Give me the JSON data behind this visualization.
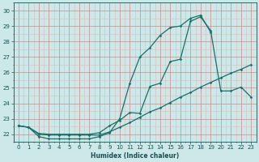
{
  "xlabel": "Humidex (Indice chaleur)",
  "xlim": [
    -0.5,
    23.5
  ],
  "ylim": [
    21.5,
    30.5
  ],
  "xticks": [
    0,
    1,
    2,
    3,
    4,
    5,
    6,
    7,
    8,
    9,
    10,
    11,
    12,
    13,
    14,
    15,
    16,
    17,
    18,
    19,
    20,
    21,
    22,
    23
  ],
  "yticks": [
    22,
    23,
    24,
    25,
    26,
    27,
    28,
    29,
    30
  ],
  "bg_color": "#cce8e8",
  "line_color": "#1a7068",
  "grid_major_color": "#cc9999",
  "grid_minor_color": "#ddbbbb",
  "line1_x": [
    0,
    1,
    2,
    3,
    4,
    5,
    6,
    7,
    8,
    9,
    10,
    11,
    12,
    13,
    14,
    15,
    16,
    17,
    18,
    19,
    20,
    21,
    22,
    23
  ],
  "line1_y": [
    22.55,
    22.45,
    21.85,
    21.7,
    21.7,
    21.7,
    21.7,
    21.7,
    21.85,
    22.1,
    23.0,
    25.3,
    27.0,
    27.6,
    28.4,
    28.9,
    29.0,
    29.5,
    29.7,
    28.6,
    null,
    null,
    null,
    null
  ],
  "line2_x": [
    0,
    1,
    2,
    3,
    4,
    5,
    6,
    7,
    8,
    9,
    10,
    11,
    12,
    13,
    14,
    15,
    16,
    17,
    18,
    19,
    20,
    21,
    22,
    23
  ],
  "line2_y": [
    22.55,
    22.45,
    22.05,
    22.0,
    22.0,
    22.0,
    22.0,
    22.0,
    22.1,
    22.55,
    22.9,
    23.4,
    23.35,
    25.1,
    25.3,
    26.7,
    26.85,
    29.3,
    29.6,
    28.7,
    24.8,
    24.8,
    25.05,
    24.4
  ],
  "line3_x": [
    0,
    1,
    2,
    3,
    4,
    5,
    6,
    7,
    8,
    9,
    10,
    11,
    12,
    13,
    14,
    15,
    16,
    17,
    18,
    19,
    20,
    21,
    22,
    23
  ],
  "line3_y": [
    22.55,
    22.45,
    22.0,
    21.95,
    21.95,
    21.95,
    21.95,
    21.95,
    21.95,
    22.15,
    22.45,
    22.75,
    23.1,
    23.45,
    23.7,
    24.05,
    24.4,
    24.7,
    25.05,
    25.35,
    25.65,
    25.95,
    26.2,
    26.5
  ]
}
